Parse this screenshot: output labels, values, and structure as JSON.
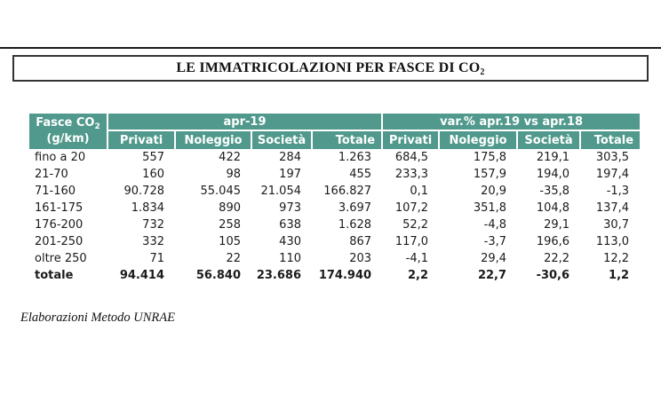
{
  "title_box": {
    "title_prefix": "LE IMMATRICOLAZIONI PER FASCE DI CO",
    "title_sub": "2"
  },
  "table": {
    "header": {
      "col0_line1_prefix": "Fasce CO",
      "col0_line1_sub": "2",
      "col0_line2": "(g/km)",
      "group1": "apr-19",
      "group2": "var.% apr.19 vs apr.18",
      "columns": [
        "Privati",
        "Noleggio",
        "Società",
        "Totale",
        "Privati",
        "Noleggio",
        "Società",
        "Totale"
      ]
    },
    "rows": [
      {
        "label": "fino a 20",
        "values": [
          "557",
          "422",
          "284",
          "1.263",
          "684,5",
          "175,8",
          "219,1",
          "303,5"
        ],
        "bold": false
      },
      {
        "label": "21-70",
        "values": [
          "160",
          "98",
          "197",
          "455",
          "233,3",
          "157,9",
          "194,0",
          "197,4"
        ],
        "bold": false
      },
      {
        "label": "71-160",
        "values": [
          "90.728",
          "55.045",
          "21.054",
          "166.827",
          "0,1",
          "20,9",
          "-35,8",
          "-1,3"
        ],
        "bold": false
      },
      {
        "label": "161-175",
        "values": [
          "1.834",
          "890",
          "973",
          "3.697",
          "107,2",
          "351,8",
          "104,8",
          "137,4"
        ],
        "bold": false
      },
      {
        "label": "176-200",
        "values": [
          "732",
          "258",
          "638",
          "1.628",
          "52,2",
          "-4,8",
          "29,1",
          "30,7"
        ],
        "bold": false
      },
      {
        "label": "201-250",
        "values": [
          "332",
          "105",
          "430",
          "867",
          "117,0",
          "-3,7",
          "196,6",
          "113,0"
        ],
        "bold": false
      },
      {
        "label": "oltre 250",
        "values": [
          "71",
          "22",
          "110",
          "203",
          "-4,1",
          "29,4",
          "22,2",
          "12,2"
        ],
        "bold": false
      },
      {
        "label": "totale",
        "values": [
          "94.414",
          "56.840",
          "23.686",
          "174.940",
          "2,2",
          "22,7",
          "-30,6",
          "1,2"
        ],
        "bold": true
      }
    ]
  },
  "footer": {
    "source": "Elaborazioni Metodo UNRAE"
  },
  "colors": {
    "header_teal": "#50998C",
    "rule_black": "#1a1a1a",
    "text": "#1b1b1b"
  }
}
